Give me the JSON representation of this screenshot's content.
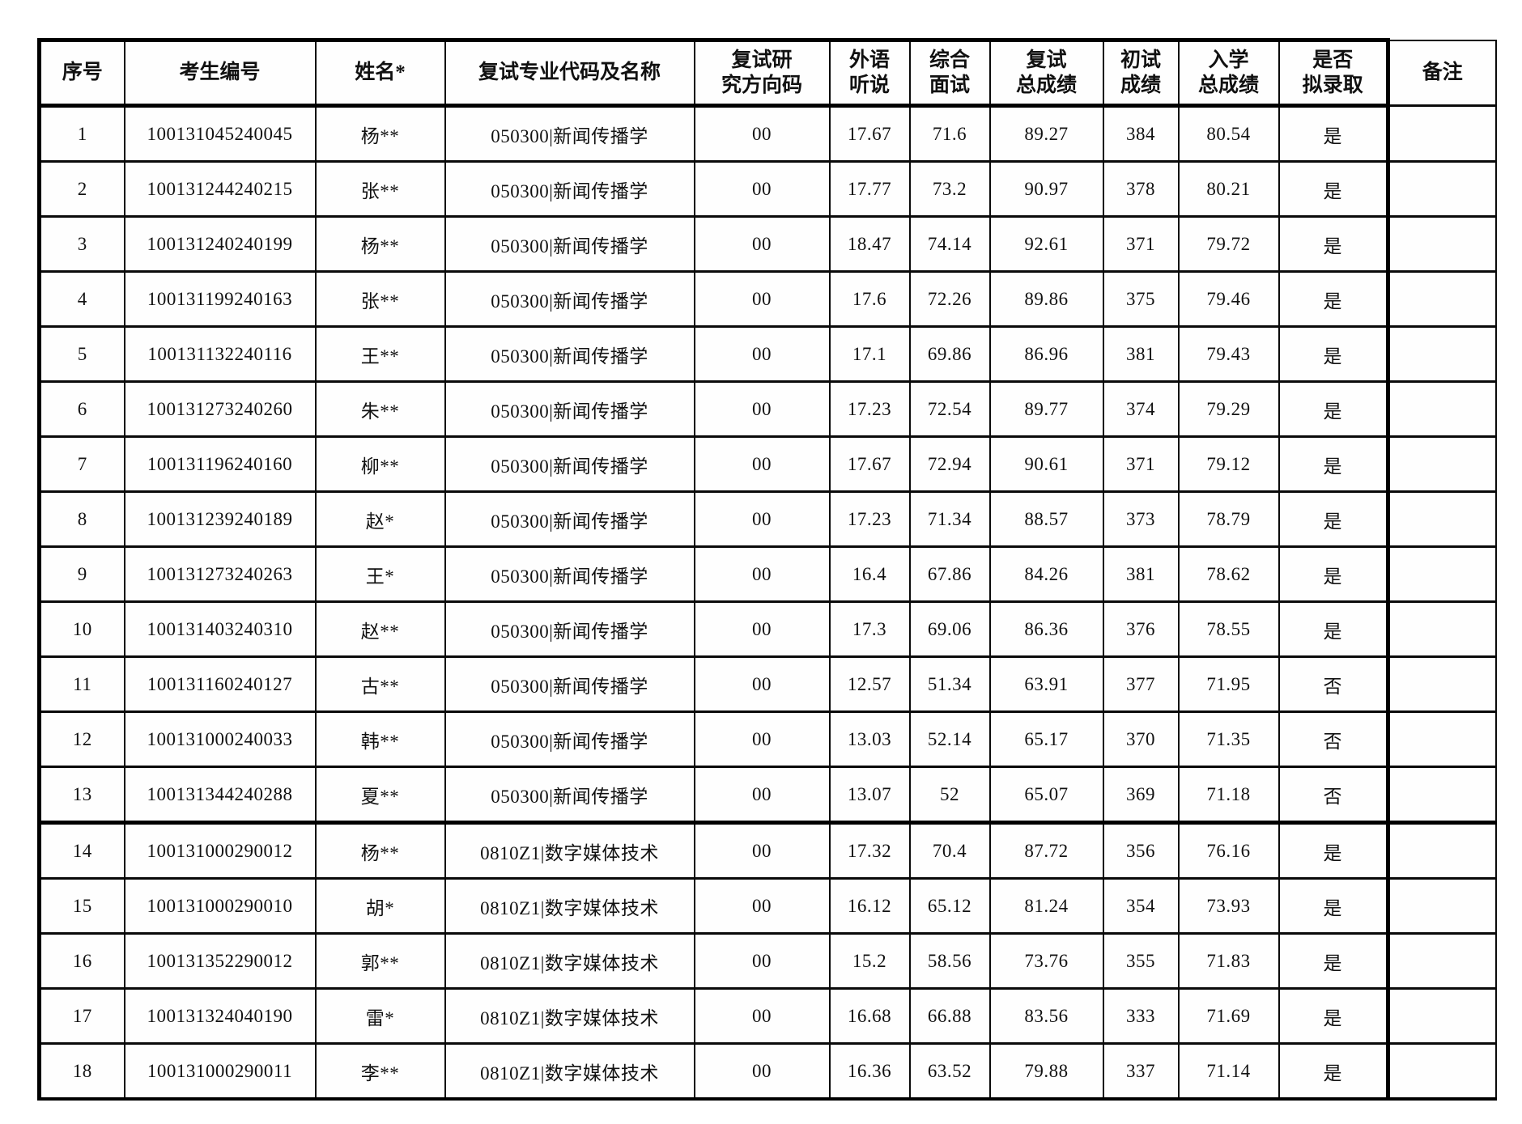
{
  "table": {
    "columns": [
      {
        "key": "index",
        "label": "序号"
      },
      {
        "key": "candidate_id",
        "label": "考生编号"
      },
      {
        "key": "name",
        "label": "姓名*"
      },
      {
        "key": "major",
        "label": "复试专业代码及名称"
      },
      {
        "key": "direction_code",
        "label": "复试研\n究方向码"
      },
      {
        "key": "listening",
        "label": "外语\n听说"
      },
      {
        "key": "interview",
        "label": "综合\n面试"
      },
      {
        "key": "retest_total",
        "label": "复试\n总成绩"
      },
      {
        "key": "initial_score",
        "label": "初试\n成绩"
      },
      {
        "key": "admission_total",
        "label": "入学\n总成绩"
      },
      {
        "key": "admitted",
        "label": "是否\n拟录取"
      },
      {
        "key": "remarks",
        "label": "备注"
      }
    ],
    "group_end_row_indexes": [
      12
    ],
    "rows": [
      [
        "1",
        "100131045240045",
        "杨**",
        "050300|新闻传播学",
        "00",
        "17.67",
        "71.6",
        "89.27",
        "384",
        "80.54",
        "是",
        ""
      ],
      [
        "2",
        "100131244240215",
        "张**",
        "050300|新闻传播学",
        "00",
        "17.77",
        "73.2",
        "90.97",
        "378",
        "80.21",
        "是",
        ""
      ],
      [
        "3",
        "100131240240199",
        "杨**",
        "050300|新闻传播学",
        "00",
        "18.47",
        "74.14",
        "92.61",
        "371",
        "79.72",
        "是",
        ""
      ],
      [
        "4",
        "100131199240163",
        "张**",
        "050300|新闻传播学",
        "00",
        "17.6",
        "72.26",
        "89.86",
        "375",
        "79.46",
        "是",
        ""
      ],
      [
        "5",
        "100131132240116",
        "王**",
        "050300|新闻传播学",
        "00",
        "17.1",
        "69.86",
        "86.96",
        "381",
        "79.43",
        "是",
        ""
      ],
      [
        "6",
        "100131273240260",
        "朱**",
        "050300|新闻传播学",
        "00",
        "17.23",
        "72.54",
        "89.77",
        "374",
        "79.29",
        "是",
        ""
      ],
      [
        "7",
        "100131196240160",
        "柳**",
        "050300|新闻传播学",
        "00",
        "17.67",
        "72.94",
        "90.61",
        "371",
        "79.12",
        "是",
        ""
      ],
      [
        "8",
        "100131239240189",
        "赵*",
        "050300|新闻传播学",
        "00",
        "17.23",
        "71.34",
        "88.57",
        "373",
        "78.79",
        "是",
        ""
      ],
      [
        "9",
        "100131273240263",
        "王*",
        "050300|新闻传播学",
        "00",
        "16.4",
        "67.86",
        "84.26",
        "381",
        "78.62",
        "是",
        ""
      ],
      [
        "10",
        "100131403240310",
        "赵**",
        "050300|新闻传播学",
        "00",
        "17.3",
        "69.06",
        "86.36",
        "376",
        "78.55",
        "是",
        ""
      ],
      [
        "11",
        "100131160240127",
        "古**",
        "050300|新闻传播学",
        "00",
        "12.57",
        "51.34",
        "63.91",
        "377",
        "71.95",
        "否",
        ""
      ],
      [
        "12",
        "100131000240033",
        "韩**",
        "050300|新闻传播学",
        "00",
        "13.03",
        "52.14",
        "65.17",
        "370",
        "71.35",
        "否",
        ""
      ],
      [
        "13",
        "100131344240288",
        "夏**",
        "050300|新闻传播学",
        "00",
        "13.07",
        "52",
        "65.07",
        "369",
        "71.18",
        "否",
        ""
      ],
      [
        "14",
        "100131000290012",
        "杨**",
        "0810Z1|数字媒体技术",
        "00",
        "17.32",
        "70.4",
        "87.72",
        "356",
        "76.16",
        "是",
        ""
      ],
      [
        "15",
        "100131000290010",
        "胡*",
        "0810Z1|数字媒体技术",
        "00",
        "16.12",
        "65.12",
        "81.24",
        "354",
        "73.93",
        "是",
        ""
      ],
      [
        "16",
        "100131352290012",
        "郭**",
        "0810Z1|数字媒体技术",
        "00",
        "15.2",
        "58.56",
        "73.76",
        "355",
        "71.83",
        "是",
        ""
      ],
      [
        "17",
        "100131324040190",
        "雷*",
        "0810Z1|数字媒体技术",
        "00",
        "16.68",
        "66.88",
        "83.56",
        "333",
        "71.69",
        "是",
        ""
      ],
      [
        "18",
        "100131000290011",
        "李**",
        "0810Z1|数字媒体技术",
        "00",
        "16.36",
        "63.52",
        "79.88",
        "337",
        "71.14",
        "是",
        ""
      ]
    ]
  }
}
